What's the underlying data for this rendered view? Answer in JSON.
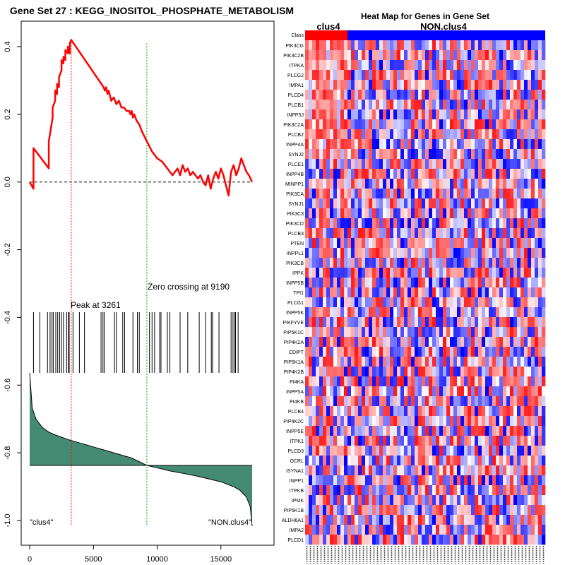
{
  "gsea": {
    "title": "Gene Set  27 : KEGG_INOSITOL_PHOSPHATE_METABOLISM",
    "peak_label": "Peak at 3261",
    "zero_label": "Zero crossing at 9190",
    "left_class_label": "\"clus4\"",
    "right_class_label": "\"NON.clus4\"",
    "peak_position": 3261,
    "zero_crossing": 9190,
    "y_ticks": [
      {
        "value": 0.4,
        "label": "0.4"
      },
      {
        "value": 0.2,
        "label": "0.2"
      },
      {
        "value": 0.0,
        "label": "0.0"
      },
      {
        "value": -0.2,
        "label": "-0.2"
      },
      {
        "value": -0.4,
        "label": "-0.4"
      },
      {
        "value": -0.6,
        "label": "-0.6"
      },
      {
        "value": -0.8,
        "label": "-0.8"
      },
      {
        "value": -1.0,
        "label": "-1.0"
      }
    ],
    "x_ticks": [
      {
        "value": 0,
        "label": "0"
      },
      {
        "value": 5000,
        "label": "5000"
      },
      {
        "value": 10000,
        "label": "10000"
      },
      {
        "value": 15000,
        "label": "15000"
      }
    ]
  },
  "heatmap": {
    "title": "Heat Map for Genes in Gene Set",
    "class_row_label": "Class",
    "class_labels": [
      "clus4",
      "NON.clus4"
    ],
    "genes": [
      "PIK3CG",
      "PIK3C2B",
      "ITPKA",
      "PLCG2",
      "IMPA1",
      "PLCD4",
      "PLCB1",
      "INPP5J",
      "PIK3C2A",
      "PLCB2",
      "INPP4A",
      "SYNJ2",
      "PLCE1",
      "INPP4B",
      "MINPP1",
      "PIK3CA",
      "SYNJ1",
      "PIK3C3",
      "PIK3CD",
      "PLCB3",
      "PTEN",
      "INPPL1",
      "PIK3CB",
      "IPPK",
      "INPP5B",
      "TPI1",
      "PLCG1",
      "INPP5K",
      "PIKFYVE",
      "PIP5K1C",
      "PIP4K2A",
      "CDIPT",
      "PIP5K1A",
      "PIP4K2B",
      "PI4KA",
      "INPP5A",
      "PI4KB",
      "PLCB4",
      "PIP4K2C",
      "INPP5E",
      "ITPK1",
      "PLCD3",
      "OCRL",
      "ISYNA1",
      "INPP1",
      "ITPKB",
      "IPMK",
      "PIP5K1B",
      "ALDH6A1",
      "IMPA2",
      "PLCD1"
    ],
    "colors": {
      "clus4_bar": "#ff0000",
      "non_bar": "#0000ff"
    }
  },
  "chart_data": [
    {
      "type": "line",
      "title": "Gene Set  27 : KEGG_INOSITOL_PHOSPHATE_METABOLISM",
      "xlim": [
        0,
        17500
      ],
      "ylim": [
        -1.0,
        0.45
      ],
      "series": [
        {
          "x": [
            0,
            300,
            301,
            1500,
            1501,
            1800,
            1801,
            2000,
            2001,
            2150,
            2151,
            2300,
            2301,
            2500,
            2501,
            2650,
            2651,
            2800,
            2801,
            3000,
            3001,
            3150,
            3151,
            3261,
            5800,
            5900,
            6000,
            6100,
            6200,
            6400,
            6600,
            6800,
            7000,
            7200,
            7400,
            7600,
            7800,
            7900,
            8000,
            8100,
            8200,
            8400,
            8600,
            8800,
            9190,
            9600,
            10000,
            10400,
            10800,
            11200,
            11400,
            11600,
            11800,
            12000,
            12200,
            12400,
            12600,
            12800,
            13000,
            13200,
            13400,
            13600,
            13800,
            14000,
            14200,
            14400,
            14600,
            14800,
            15000,
            15200,
            15400,
            15600,
            15800,
            16000,
            16200,
            16400,
            16600,
            16800,
            17000,
            17200,
            17450
          ],
          "y": [
            0.0,
            -0.02,
            0.1,
            0.04,
            0.12,
            0.19,
            0.22,
            0.24,
            0.27,
            0.26,
            0.29,
            0.28,
            0.31,
            0.33,
            0.36,
            0.35,
            0.37,
            0.36,
            0.39,
            0.38,
            0.4,
            0.38,
            0.41,
            0.42,
            0.28,
            0.27,
            0.28,
            0.26,
            0.27,
            0.24,
            0.25,
            0.23,
            0.24,
            0.22,
            0.22,
            0.21,
            0.21,
            0.2,
            0.21,
            0.19,
            0.2,
            0.18,
            0.17,
            0.15,
            0.12,
            0.09,
            0.07,
            0.06,
            0.04,
            0.02,
            0.03,
            0.04,
            0.02,
            0.05,
            0.03,
            0.04,
            0.02,
            0.03,
            0.02,
            0.01,
            0.02,
            0.0,
            -0.01,
            0.02,
            -0.02,
            0.01,
            0.03,
            0.01,
            0.04,
            0.02,
            -0.01,
            -0.04,
            0.03,
            0.05,
            0.02,
            0.04,
            0.07,
            0.05,
            0.03,
            0.02,
            0.0
          ]
        }
      ],
      "hits": [
        300,
        800,
        1400,
        1600,
        1750,
        1850,
        2050,
        2200,
        2350,
        2500,
        2650,
        2900,
        3050,
        3100,
        3400,
        3900,
        4300,
        5600,
        5750,
        5850,
        6650,
        6800,
        7300,
        7450,
        8100,
        8450,
        8600,
        9400,
        9600,
        9800,
        10200,
        10300,
        10800,
        11000,
        11800,
        12400,
        13300,
        13800,
        14250,
        14350,
        14850,
        15800,
        15950,
        16100,
        16150,
        16350
      ]
    },
    {
      "type": "area",
      "title": "",
      "xlim": [
        0,
        17500
      ],
      "x": [
        0,
        200,
        500,
        1000,
        1500,
        2000,
        3000,
        4000,
        5000,
        6000,
        7000,
        8000,
        9190,
        10000,
        11000,
        12000,
        13000,
        14000,
        15000,
        16000,
        16500,
        17000,
        17300,
        17450
      ],
      "y": [
        1.0,
        0.62,
        0.5,
        0.41,
        0.36,
        0.33,
        0.28,
        0.24,
        0.2,
        0.16,
        0.12,
        0.08,
        0.0,
        -0.04,
        -0.09,
        -0.13,
        -0.17,
        -0.22,
        -0.27,
        -0.35,
        -0.41,
        -0.52,
        -0.68,
        -1.0
      ]
    }
  ]
}
